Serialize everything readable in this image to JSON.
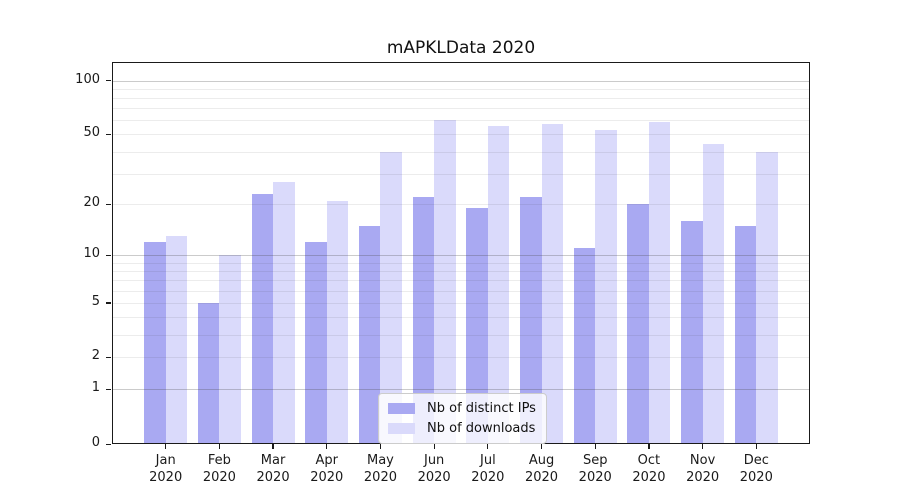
{
  "chart_data": {
    "type": "bar",
    "title": "mAPKLData 2020",
    "x_categories": [
      {
        "month": "Jan",
        "year": "2020"
      },
      {
        "month": "Feb",
        "year": "2020"
      },
      {
        "month": "Mar",
        "year": "2020"
      },
      {
        "month": "Apr",
        "year": "2020"
      },
      {
        "month": "May",
        "year": "2020"
      },
      {
        "month": "Jun",
        "year": "2020"
      },
      {
        "month": "Jul",
        "year": "2020"
      },
      {
        "month": "Aug",
        "year": "2020"
      },
      {
        "month": "Sep",
        "year": "2020"
      },
      {
        "month": "Oct",
        "year": "2020"
      },
      {
        "month": "Nov",
        "year": "2020"
      },
      {
        "month": "Dec",
        "year": "2020"
      }
    ],
    "series": [
      {
        "name": "Nb of distinct IPs",
        "color": "#a9a9f2",
        "values": [
          12,
          5,
          23,
          12,
          15,
          22,
          19,
          22,
          11,
          20,
          16,
          15
        ]
      },
      {
        "name": "Nb of downloads",
        "color": "#dadafb",
        "values": [
          13,
          10,
          27,
          21,
          40,
          60,
          56,
          57,
          53,
          59,
          44,
          40
        ]
      }
    ],
    "yscale": "log1p",
    "ylim": [
      0,
      127
    ],
    "y_ticks": [
      100,
      50,
      20,
      10,
      5,
      2,
      1,
      0
    ],
    "y_major_gridlines": [
      1,
      10,
      100
    ],
    "y_minor_gridlines": [
      2,
      3,
      4,
      5,
      6,
      7,
      8,
      9,
      20,
      30,
      40,
      50,
      60,
      70,
      80,
      90
    ],
    "grid": true,
    "legend_position": "lower center"
  }
}
